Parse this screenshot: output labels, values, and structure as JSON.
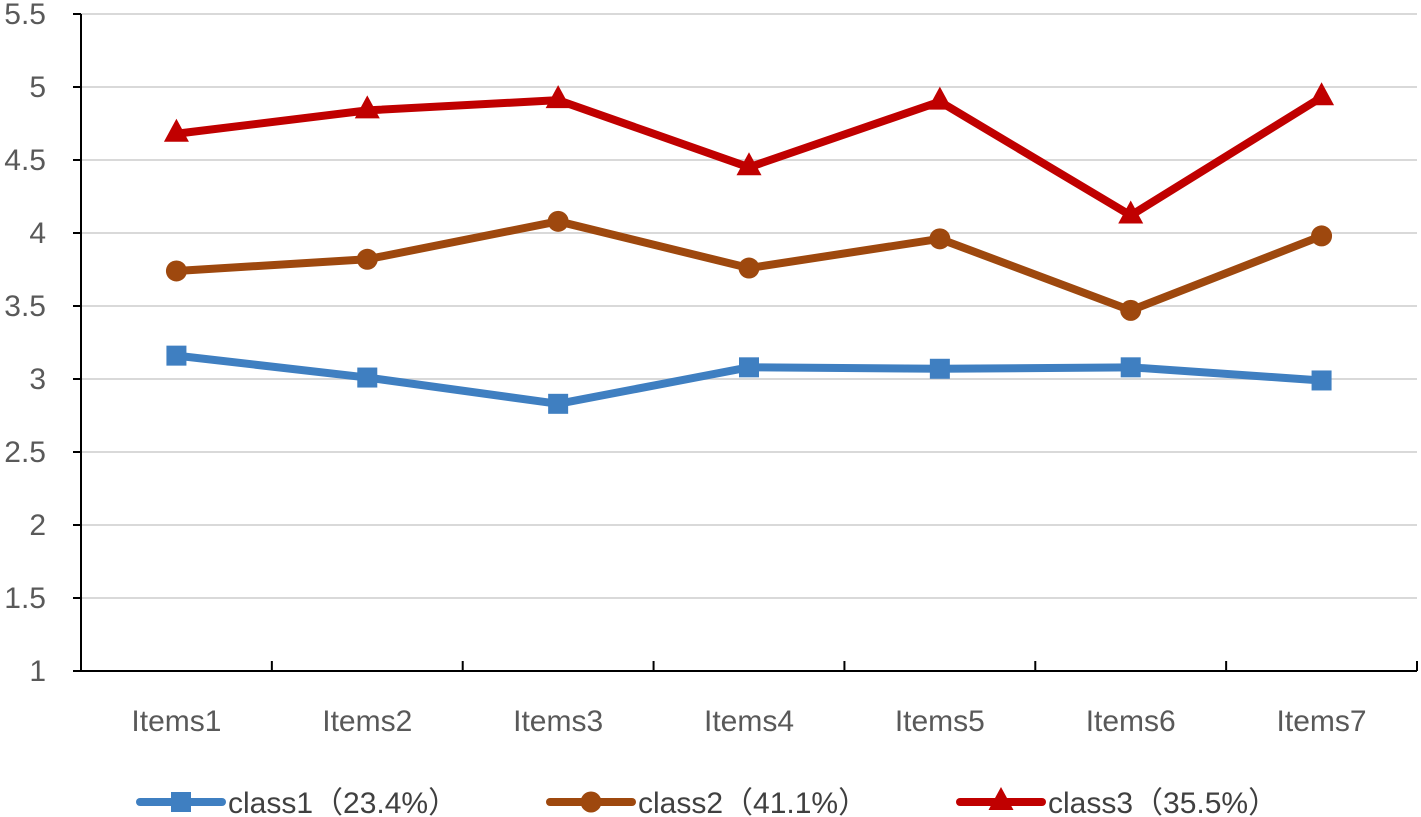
{
  "chart_data": {
    "type": "line",
    "title": "",
    "xlabel": "",
    "ylabel": "",
    "categories": [
      "Items1",
      "Items2",
      "Items3",
      "Items4",
      "Items5",
      "Items6",
      "Items7"
    ],
    "ylim": [
      1,
      5.5
    ],
    "yticks": [
      "1",
      "1.5",
      "2",
      "2.5",
      "3",
      "3.5",
      "4",
      "4.5",
      "5",
      "5.5"
    ],
    "grid": true,
    "legend": "bottom",
    "series": [
      {
        "name": "class1（23.4%）",
        "values": [
          3.16,
          3.01,
          2.83,
          3.08,
          3.07,
          3.08,
          2.99
        ],
        "color": "#3f7fc1",
        "marker": "square"
      },
      {
        "name": "class2（41.1%）",
        "values": [
          3.74,
          3.82,
          4.08,
          3.76,
          3.96,
          3.47,
          3.98
        ],
        "color": "#9e480e",
        "marker": "circle"
      },
      {
        "name": "class3（35.5%）",
        "values": [
          4.68,
          4.84,
          4.91,
          4.45,
          4.9,
          4.12,
          4.93
        ],
        "color": "#c00000",
        "marker": "triangle"
      }
    ]
  }
}
